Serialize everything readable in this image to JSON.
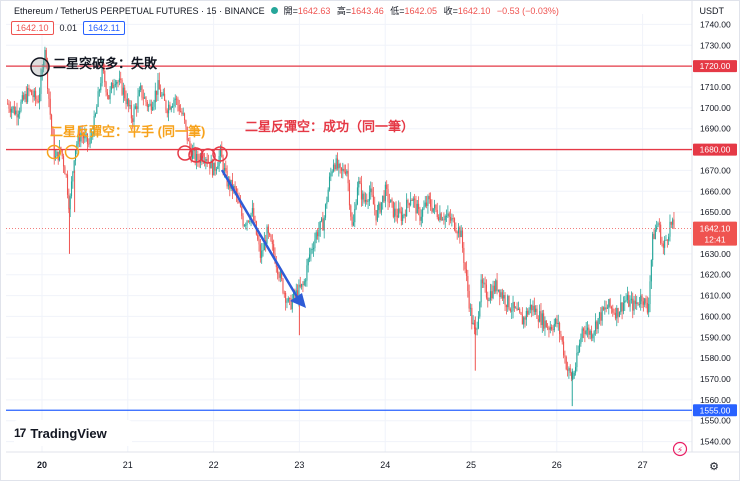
{
  "header": {
    "symbol": "Ethereum / TetherUS PERPETUAL FUTURES · 15 · BINANCE",
    "ohlc": [
      {
        "k": "開=",
        "v": "1642.63"
      },
      {
        "k": "高=",
        "v": "1643.46"
      },
      {
        "k": "低=",
        "v": "1642.05"
      },
      {
        "k": "收=",
        "v": "1642.10"
      },
      {
        "k": "",
        "v": "−0.53 (−0.03%)"
      }
    ],
    "price_box_1": "1642.10",
    "spread": "0.01",
    "price_box_2": "1642.11",
    "currency": "USDT",
    "logo_text": "TradingView",
    "logo_mark": "17"
  },
  "annotations": {
    "top": "二星突破多：失敗",
    "left": "二星反彈空：平手 (同一筆)",
    "right": "二星反彈空：成功（同一筆）"
  },
  "colors": {
    "up": "#26a69a",
    "down": "#ef5350",
    "red_line": "#e53946",
    "blue_line": "#2962ff",
    "orange_text": "#f7a21b",
    "red_text": "#e53946"
  },
  "chart_data": {
    "type": "candlestick",
    "yaxis": {
      "min": 1535,
      "max": 1745,
      "ticks": [
        1540,
        1550,
        1560,
        1570,
        1580,
        1590,
        1600,
        1610,
        1620,
        1630,
        1640,
        1650,
        1660,
        1670,
        1680,
        1690,
        1700,
        1710,
        1720,
        1730,
        1740
      ]
    },
    "xaxis": {
      "ticks": [
        {
          "label": "20",
          "x": 0
        },
        {
          "label": "21",
          "x": 1
        },
        {
          "label": "22",
          "x": 2
        },
        {
          "label": "23",
          "x": 3
        },
        {
          "label": "24",
          "x": 4
        },
        {
          "label": "25",
          "x": 5
        },
        {
          "label": "26",
          "x": 6
        },
        {
          "label": "27",
          "x": 7
        }
      ]
    },
    "horizontal_lines": [
      {
        "price": 1720.0,
        "label": "1720.00",
        "color": "#e53946"
      },
      {
        "price": 1680.0,
        "label": "1680.00",
        "color": "#e53946"
      },
      {
        "price": 1555.0,
        "label": "1555.00",
        "color": "#2962ff"
      }
    ],
    "last_price": {
      "price": 1642.1,
      "label": "1642.10",
      "countdown": "12:41"
    },
    "path": [
      [
        -0.4,
        1702
      ],
      [
        -0.3,
        1698
      ],
      [
        -0.15,
        1708
      ],
      [
        -0.05,
        1703
      ],
      [
        0.0,
        1715
      ],
      [
        0.03,
        1732
      ],
      [
        0.06,
        1715
      ],
      [
        0.1,
        1695
      ],
      [
        0.15,
        1675
      ],
      [
        0.22,
        1680
      ],
      [
        0.28,
        1668
      ],
      [
        0.32,
        1652
      ],
      [
        0.38,
        1680
      ],
      [
        0.45,
        1688
      ],
      [
        0.55,
        1682
      ],
      [
        0.62,
        1695
      ],
      [
        0.7,
        1718
      ],
      [
        0.78,
        1705
      ],
      [
        0.85,
        1715
      ],
      [
        0.95,
        1708
      ],
      [
        1.05,
        1695
      ],
      [
        1.15,
        1708
      ],
      [
        1.25,
        1700
      ],
      [
        1.35,
        1710
      ],
      [
        1.45,
        1700
      ],
      [
        1.55,
        1705
      ],
      [
        1.65,
        1695
      ],
      [
        1.72,
        1680
      ],
      [
        1.8,
        1675
      ],
      [
        1.9,
        1678
      ],
      [
        2.0,
        1670
      ],
      [
        2.08,
        1678
      ],
      [
        2.15,
        1665
      ],
      [
        2.25,
        1660
      ],
      [
        2.35,
        1645
      ],
      [
        2.45,
        1650
      ],
      [
        2.55,
        1628
      ],
      [
        2.62,
        1640
      ],
      [
        2.72,
        1628
      ],
      [
        2.8,
        1615
      ],
      [
        2.88,
        1605
      ],
      [
        2.95,
        1610
      ],
      [
        3.05,
        1615
      ],
      [
        3.12,
        1630
      ],
      [
        3.2,
        1640
      ],
      [
        3.28,
        1645
      ],
      [
        3.35,
        1665
      ],
      [
        3.4,
        1675
      ],
      [
        3.48,
        1668
      ],
      [
        3.55,
        1672
      ],
      [
        3.62,
        1640
      ],
      [
        3.68,
        1665
      ],
      [
        3.75,
        1655
      ],
      [
        3.82,
        1660
      ],
      [
        3.9,
        1648
      ],
      [
        4.0,
        1660
      ],
      [
        4.1,
        1650
      ],
      [
        4.2,
        1648
      ],
      [
        4.3,
        1658
      ],
      [
        4.4,
        1648
      ],
      [
        4.5,
        1655
      ],
      [
        4.6,
        1650
      ],
      [
        4.7,
        1648
      ],
      [
        4.8,
        1645
      ],
      [
        4.88,
        1640
      ],
      [
        4.94,
        1620
      ],
      [
        5.0,
        1600
      ],
      [
        5.05,
        1590
      ],
      [
        5.12,
        1615
      ],
      [
        5.2,
        1610
      ],
      [
        5.3,
        1615
      ],
      [
        5.4,
        1608
      ],
      [
        5.5,
        1603
      ],
      [
        5.6,
        1598
      ],
      [
        5.7,
        1605
      ],
      [
        5.8,
        1600
      ],
      [
        5.9,
        1595
      ],
      [
        6.0,
        1597
      ],
      [
        6.05,
        1590
      ],
      [
        6.12,
        1575
      ],
      [
        6.18,
        1570
      ],
      [
        6.24,
        1580
      ],
      [
        6.3,
        1595
      ],
      [
        6.4,
        1592
      ],
      [
        6.5,
        1600
      ],
      [
        6.6,
        1605
      ],
      [
        6.7,
        1602
      ],
      [
        6.8,
        1608
      ],
      [
        6.9,
        1605
      ],
      [
        7.0,
        1610
      ],
      [
        7.06,
        1602
      ],
      [
        7.12,
        1638
      ],
      [
        7.18,
        1645
      ],
      [
        7.24,
        1632
      ],
      [
        7.32,
        1644
      ],
      [
        7.38,
        1642
      ]
    ]
  }
}
